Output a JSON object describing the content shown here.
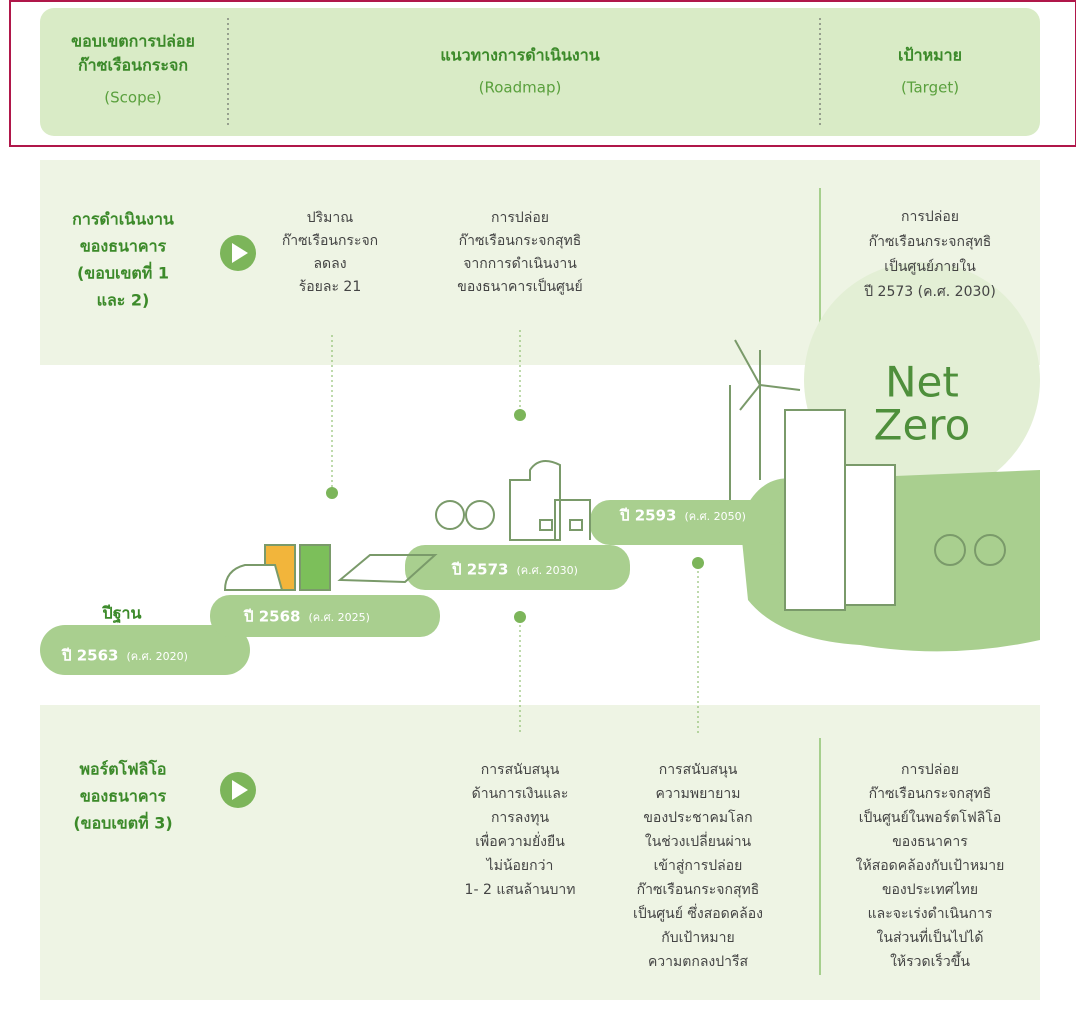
{
  "header": {
    "scope": {
      "title": [
        "ขอบเขตการปล่อย",
        "ก๊าซเรือนกระจก"
      ],
      "subtitle": "(Scope)"
    },
    "roadmap": {
      "title": [
        "แนวทางการดำเนินงาน"
      ],
      "subtitle": "(Roadmap)"
    },
    "target": {
      "title": [
        "เป้าหมาย"
      ],
      "subtitle": "(Target)"
    }
  },
  "operations": {
    "label": [
      "การดำเนินงาน",
      "ของธนาคาร",
      "(ขอบเขตที่ 1",
      "และ 2)"
    ],
    "milestones": [
      [
        "ปริมาณ",
        "ก๊าซเรือนกระจก",
        "ลดลง",
        "ร้อยละ 21"
      ],
      [
        "การปล่อย",
        "ก๊าซเรือนกระจกสุทธิ",
        "จากการดำเนินงาน",
        "ของธนาคารเป็นศูนย์"
      ]
    ],
    "target": [
      "การปล่อย",
      "ก๊าซเรือนกระจกสุทธิ",
      "เป็นศูนย์ภายใน",
      "ปี 2573 (ค.ศ. 2030)"
    ]
  },
  "steps": [
    {
      "caption": "ปีฐาน",
      "year": "ปี 2563",
      "ce": "(ค.ศ. 2020)"
    },
    {
      "year": "ปี 2568",
      "ce": "(ค.ศ. 2025)"
    },
    {
      "year": "ปี 2573",
      "ce": "(ค.ศ. 2030)"
    },
    {
      "year": "ปี 2593",
      "ce": "(ค.ศ. 2050)"
    }
  ],
  "net_zero": [
    "Net",
    "Zero"
  ],
  "portfolio": {
    "label": [
      "พอร์ตโฟลิโอ",
      "ของธนาคาร",
      "(ขอบเขตที่ 3)"
    ],
    "milestones": [
      [
        "การสนับสนุน",
        "ด้านการเงินและ",
        "การลงทุน",
        "เพื่อความยั่งยืน",
        "ไม่น้อยกว่า",
        "1- 2 แสนล้านบาท"
      ],
      [
        "การสนับสนุน",
        "ความพยายาม",
        "ของประชาคมโลก",
        "ในช่วงเปลี่ยนผ่าน",
        "เข้าสู่การปล่อย",
        "ก๊าซเรือนกระจกสุทธิ",
        "เป็นศูนย์ ซึ่งสอดคล้อง",
        "กับเป้าหมาย",
        "ความตกลงปารีส"
      ]
    ],
    "target": [
      "การปล่อย",
      "ก๊าซเรือนกระจกสุทธิ",
      "เป็นศูนย์ในพอร์ตโฟลิโอ",
      "ของธนาคาร",
      "ให้สอดคล้องกับเป้าหมาย",
      "ของประเทศไทย",
      "และจะเร่งดำเนินการ",
      "ในส่วนที่เป็นไปได้",
      "ให้รวดเร็วขึ้น"
    ]
  }
}
